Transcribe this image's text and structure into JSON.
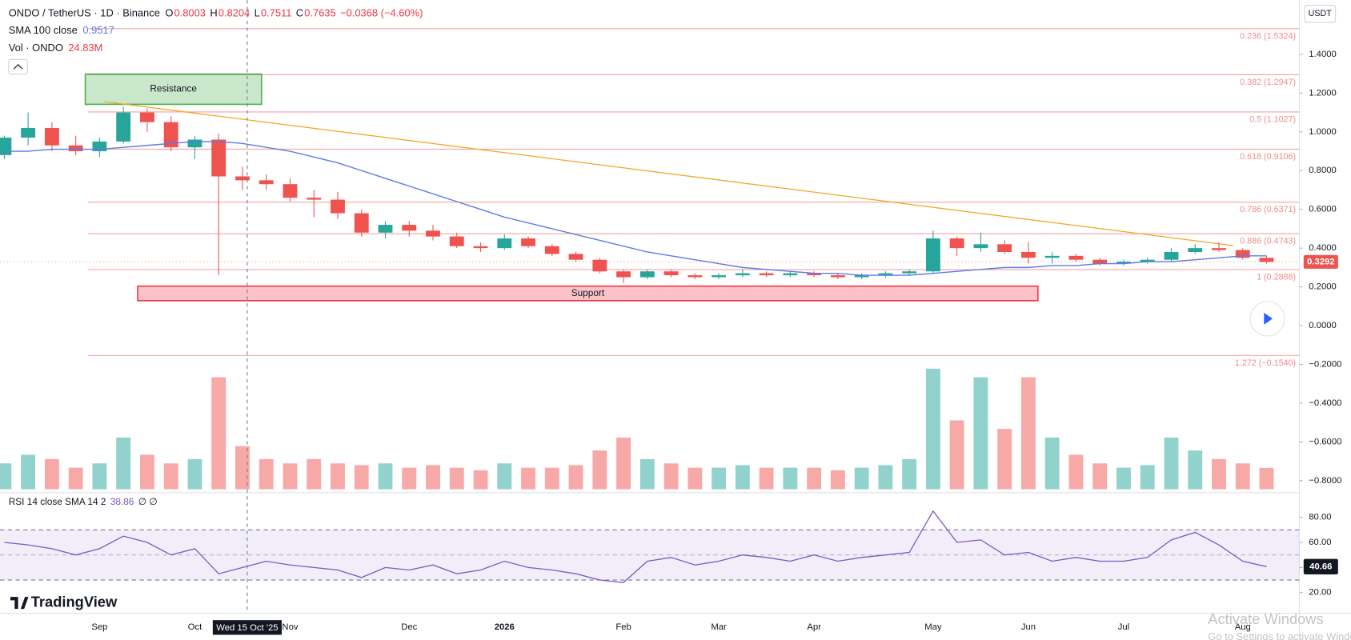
{
  "header": {
    "symbol": "ONDO / TetherUS · 1D · Binance",
    "ohlc": [
      {
        "key": "O",
        "value": "0.8003"
      },
      {
        "key": "H",
        "value": "0.8204"
      },
      {
        "key": "L",
        "value": "0.7511"
      },
      {
        "key": "C",
        "value": "0.7635"
      }
    ],
    "change": "−0.0368 (−4.60%)",
    "sma_label": "SMA 100 close",
    "sma_value": "0.9517",
    "vol_label": "Vol · ONDO",
    "vol_value": "24.83M",
    "currency": "USDT"
  },
  "crosshair_label": "Wed 15 Oct '25",
  "logo": "TradingView",
  "watermark": [
    "Activate Windows",
    "Go to Settings to activate Windows."
  ],
  "chart_data": [
    {
      "type": "candlestick",
      "categories": [
        null,
        null,
        null,
        null,
        "Sep",
        null,
        null,
        null,
        "Oct",
        null,
        null,
        null,
        "Nov",
        null,
        null,
        null,
        null,
        "Dec",
        null,
        null,
        null,
        "2026",
        null,
        null,
        null,
        null,
        "Feb",
        null,
        null,
        null,
        "Mar",
        null,
        null,
        null,
        "Apr",
        null,
        null,
        null,
        null,
        "May",
        null,
        null,
        null,
        "Jun",
        null,
        null,
        null,
        "Jul",
        null,
        null,
        null,
        null,
        "Aug",
        null
      ],
      "open": [
        0.88,
        0.97,
        1.02,
        0.93,
        0.9,
        0.95,
        1.1,
        1.05,
        0.92,
        0.96,
        0.77,
        0.75,
        0.73,
        0.66,
        0.65,
        0.58,
        0.48,
        0.52,
        0.49,
        0.46,
        0.41,
        0.4,
        0.45,
        0.41,
        0.37,
        0.34,
        0.28,
        0.25,
        0.28,
        0.26,
        0.25,
        0.26,
        0.27,
        0.26,
        0.27,
        0.26,
        0.25,
        0.26,
        0.27,
        0.28,
        0.45,
        0.4,
        0.42,
        0.38,
        0.35,
        0.36,
        0.34,
        0.32,
        0.33,
        0.34,
        0.38,
        0.4,
        0.39,
        0.35
      ],
      "high": [
        0.98,
        1.1,
        1.05,
        0.98,
        0.97,
        1.13,
        1.12,
        1.08,
        0.98,
        0.99,
        0.82,
        0.78,
        0.76,
        0.7,
        0.69,
        0.6,
        0.54,
        0.54,
        0.52,
        0.48,
        0.43,
        0.47,
        0.46,
        0.42,
        0.38,
        0.35,
        0.29,
        0.29,
        0.29,
        0.27,
        0.27,
        0.29,
        0.28,
        0.28,
        0.28,
        0.27,
        0.27,
        0.28,
        0.29,
        0.49,
        0.46,
        0.48,
        0.44,
        0.43,
        0.38,
        0.37,
        0.35,
        0.34,
        0.35,
        0.4,
        0.42,
        0.43,
        0.4,
        0.36
      ],
      "low": [
        0.86,
        0.93,
        0.9,
        0.88,
        0.87,
        0.94,
        1.0,
        0.9,
        0.86,
        0.26,
        0.7,
        0.7,
        0.64,
        0.56,
        0.55,
        0.46,
        0.45,
        0.46,
        0.44,
        0.4,
        0.38,
        0.39,
        0.4,
        0.36,
        0.33,
        0.27,
        0.22,
        0.24,
        0.25,
        0.24,
        0.24,
        0.25,
        0.25,
        0.25,
        0.25,
        0.24,
        0.24,
        0.25,
        0.26,
        0.27,
        0.36,
        0.38,
        0.37,
        0.32,
        0.32,
        0.33,
        0.31,
        0.31,
        0.32,
        0.33,
        0.37,
        0.38,
        0.34,
        0.32
      ],
      "close": [
        0.97,
        1.02,
        0.93,
        0.9,
        0.95,
        1.1,
        1.05,
        0.92,
        0.96,
        0.77,
        0.75,
        0.73,
        0.66,
        0.65,
        0.58,
        0.48,
        0.52,
        0.49,
        0.46,
        0.41,
        0.4,
        0.45,
        0.41,
        0.37,
        0.34,
        0.28,
        0.25,
        0.28,
        0.26,
        0.25,
        0.26,
        0.27,
        0.26,
        0.27,
        0.26,
        0.25,
        0.26,
        0.27,
        0.28,
        0.45,
        0.4,
        0.42,
        0.38,
        0.35,
        0.36,
        0.34,
        0.32,
        0.33,
        0.34,
        0.38,
        0.4,
        0.39,
        0.35,
        0.3292
      ],
      "colors": {
        "up": "#26a69a",
        "down": "#ef5350"
      },
      "sma": {
        "color": "#5b7be8",
        "values": [
          0.9,
          0.9,
          0.91,
          0.91,
          0.91,
          0.92,
          0.93,
          0.94,
          0.95,
          0.95,
          0.94,
          0.92,
          0.9,
          0.87,
          0.84,
          0.8,
          0.76,
          0.72,
          0.68,
          0.64,
          0.6,
          0.56,
          0.53,
          0.5,
          0.47,
          0.44,
          0.41,
          0.38,
          0.36,
          0.34,
          0.32,
          0.3,
          0.29,
          0.28,
          0.27,
          0.27,
          0.26,
          0.26,
          0.26,
          0.27,
          0.28,
          0.29,
          0.3,
          0.3,
          0.31,
          0.31,
          0.32,
          0.32,
          0.33,
          0.33,
          0.34,
          0.35,
          0.36,
          0.36
        ]
      },
      "volume": {
        "values": [
          30,
          40,
          35,
          25,
          30,
          60,
          40,
          30,
          35,
          130,
          50,
          35,
          30,
          35,
          30,
          28,
          30,
          25,
          28,
          25,
          22,
          30,
          25,
          25,
          28,
          45,
          60,
          35,
          30,
          25,
          25,
          28,
          25,
          25,
          25,
          22,
          25,
          28,
          35,
          140,
          80,
          130,
          70,
          130,
          60,
          40,
          30,
          25,
          28,
          60,
          45,
          35,
          30,
          24.83
        ]
      },
      "ylim": [
        -0.853,
        1.68
      ],
      "yticks": [
        {
          "value": 1.4,
          "label": "1.4000"
        },
        {
          "value": 1.2,
          "label": "1.2000"
        },
        {
          "value": 1.0,
          "label": "1.0000"
        },
        {
          "value": 0.8,
          "label": "0.8000"
        },
        {
          "value": 0.6,
          "label": "0.6000"
        },
        {
          "value": 0.4,
          "label": "0.4000"
        },
        {
          "value": 0.2,
          "label": "0.2000"
        },
        {
          "value": 0,
          "label": "0.0000"
        },
        {
          "value": -0.2,
          "label": "−0.2000"
        },
        {
          "value": -0.4,
          "label": "−0.4000"
        },
        {
          "value": -0.6,
          "label": "−0.6000"
        },
        {
          "value": -0.8,
          "label": "−0.8000"
        }
      ],
      "fib_levels": [
        {
          "value": 1.5324,
          "label": "0.236 (1.5324)"
        },
        {
          "value": 1.2947,
          "label": "0.382 (1.2947)"
        },
        {
          "value": 1.1027,
          "label": "0.5 (1.1027)"
        },
        {
          "value": 0.9106,
          "label": "0.618 (0.9106)"
        },
        {
          "value": 0.6371,
          "label": "0.786 (0.6371)"
        },
        {
          "value": 0.4743,
          "label": "0.886 (0.4743)"
        },
        {
          "value": 0.2888,
          "label": "1 (0.2888)"
        },
        {
          "value": -0.154,
          "label": "1.272 (−0.1540)"
        }
      ],
      "fib_color": "#f28b8b",
      "trendline": {
        "values": [
          1.156,
          0.413
        ],
        "color": "#f5a623"
      },
      "zones": [
        {
          "label": "Resistance",
          "range": [
            1.142,
            1.298
          ],
          "color": "#4caf50"
        },
        {
          "label": "Support",
          "range": [
            0.129,
            0.204
          ],
          "color": "#f23645"
        }
      ]
    },
    {
      "type": "line",
      "title": "RSI 14 close SMA 14 2",
      "value_text": "38.86",
      "extra_text": "∅ ∅",
      "color": "#7e57c2",
      "values": [
        60,
        58,
        55,
        50,
        55,
        65,
        60,
        50,
        55,
        35,
        40,
        45,
        42,
        40,
        38,
        32,
        40,
        38,
        42,
        35,
        38,
        45,
        40,
        38,
        35,
        30,
        28,
        45,
        48,
        42,
        45,
        50,
        48,
        45,
        50,
        45,
        48,
        50,
        52,
        85,
        60,
        62,
        50,
        52,
        45,
        48,
        45,
        45,
        48,
        62,
        68,
        58,
        45,
        40.66
      ],
      "ylim": [
        3.5,
        97.6
      ],
      "yticks": [
        {
          "value": 80,
          "label": "80.00"
        },
        {
          "value": 60,
          "label": "60.00"
        },
        {
          "value": 40,
          "label": "40.00"
        },
        {
          "value": 20,
          "label": "20.00"
        }
      ],
      "bands": [
        30,
        70
      ],
      "midline": 50
    }
  ]
}
